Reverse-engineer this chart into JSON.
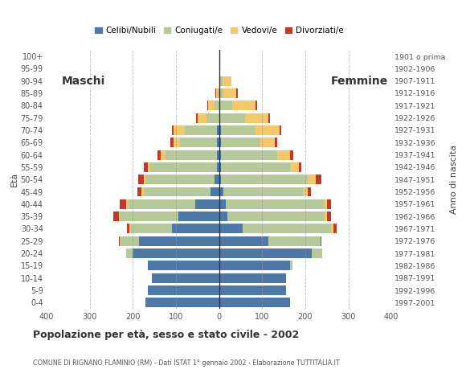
{
  "age_groups": [
    "0-4",
    "5-9",
    "10-14",
    "15-19",
    "20-24",
    "25-29",
    "30-34",
    "35-39",
    "40-44",
    "45-49",
    "50-54",
    "55-59",
    "60-64",
    "65-69",
    "70-74",
    "75-79",
    "80-84",
    "85-89",
    "90-94",
    "95-99",
    "100+"
  ],
  "birth_years": [
    "1997-2001",
    "1992-1996",
    "1987-1991",
    "1982-1986",
    "1977-1981",
    "1972-1976",
    "1967-1971",
    "1962-1966",
    "1957-1961",
    "1952-1956",
    "1947-1951",
    "1942-1946",
    "1937-1941",
    "1932-1936",
    "1927-1931",
    "1922-1926",
    "1917-1921",
    "1912-1916",
    "1907-1911",
    "1902-1906",
    "1901 o prima"
  ],
  "males": {
    "celibi": [
      170,
      165,
      155,
      165,
      200,
      185,
      110,
      95,
      55,
      20,
      10,
      5,
      5,
      5,
      5,
      0,
      0,
      0,
      0,
      0,
      0
    ],
    "coniugati": [
      0,
      0,
      0,
      0,
      15,
      45,
      95,
      135,
      155,
      155,
      160,
      155,
      120,
      85,
      75,
      30,
      10,
      3,
      0,
      0,
      0
    ],
    "vedovi": [
      0,
      0,
      0,
      0,
      0,
      0,
      3,
      3,
      5,
      5,
      5,
      5,
      10,
      15,
      25,
      20,
      15,
      3,
      0,
      0,
      0
    ],
    "divorziati": [
      0,
      0,
      0,
      0,
      0,
      3,
      5,
      12,
      15,
      10,
      12,
      10,
      8,
      8,
      5,
      3,
      3,
      3,
      0,
      0,
      0
    ]
  },
  "females": {
    "nubili": [
      165,
      155,
      155,
      165,
      215,
      115,
      55,
      20,
      15,
      10,
      5,
      5,
      5,
      5,
      5,
      0,
      0,
      0,
      3,
      0,
      0
    ],
    "coniugate": [
      0,
      0,
      0,
      5,
      25,
      120,
      205,
      225,
      230,
      185,
      200,
      160,
      130,
      90,
      80,
      60,
      30,
      10,
      5,
      0,
      0
    ],
    "vedove": [
      0,
      0,
      0,
      0,
      0,
      0,
      5,
      5,
      5,
      10,
      20,
      20,
      30,
      35,
      55,
      55,
      55,
      30,
      20,
      3,
      0
    ],
    "divorziate": [
      0,
      0,
      0,
      0,
      0,
      3,
      8,
      10,
      10,
      8,
      12,
      5,
      8,
      5,
      5,
      3,
      3,
      3,
      0,
      0,
      0
    ]
  },
  "colors": {
    "celibi": "#4e78a8",
    "coniugati": "#b5c99a",
    "vedovi": "#f5c96a",
    "divorziati": "#c0392b"
  },
  "legend_labels": [
    "Celibi/Nubili",
    "Coniugati/e",
    "Vedovi/e",
    "Divorziati/e"
  ],
  "title": "Popolazione per età, sesso e stato civile - 2002",
  "subtitle": "COMUNE DI RIGNANO FLAMINIO (RM) - Dati ISTAT 1° gennaio 2002 - Elaborazione TUTTITALIA.IT",
  "ylabel_left": "Età",
  "ylabel_right": "Anno di nascita",
  "label_maschi": "Maschi",
  "label_femmine": "Femmine",
  "xlim": 400,
  "bg_color": "#ffffff",
  "grid_color": "#999999"
}
